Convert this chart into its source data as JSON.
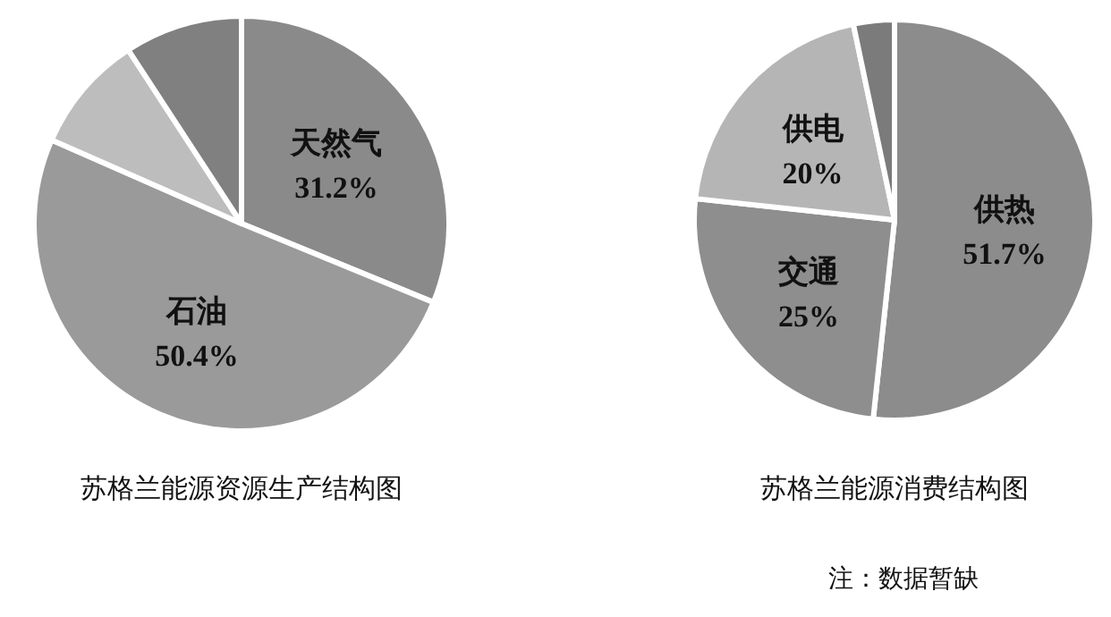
{
  "chart_data": [
    {
      "type": "pie",
      "title": "苏格兰能源资源生产结构图",
      "categories": [
        "天然气",
        "石油",
        null,
        null
      ],
      "values": [
        31.2,
        50.4,
        9.2,
        9.2
      ],
      "value_labels": [
        "31.2%",
        "50.4%",
        null,
        null
      ],
      "colors": [
        "#8a8a8a",
        "#9a9a9a",
        "#bdbdbd",
        "#808080"
      ]
    },
    {
      "type": "pie",
      "title": "苏格兰能源消费结构图",
      "categories": [
        "供热",
        "交通",
        "供电",
        null
      ],
      "values": [
        51.7,
        25,
        20,
        3.3
      ],
      "value_labels": [
        "51.7%",
        "25%",
        "20%",
        null
      ],
      "colors": [
        "#8c8c8c",
        "#8e8e8e",
        "#b5b5b5",
        "#7b7b7b"
      ],
      "annotations": [
        "注：数据暂缺"
      ]
    }
  ]
}
